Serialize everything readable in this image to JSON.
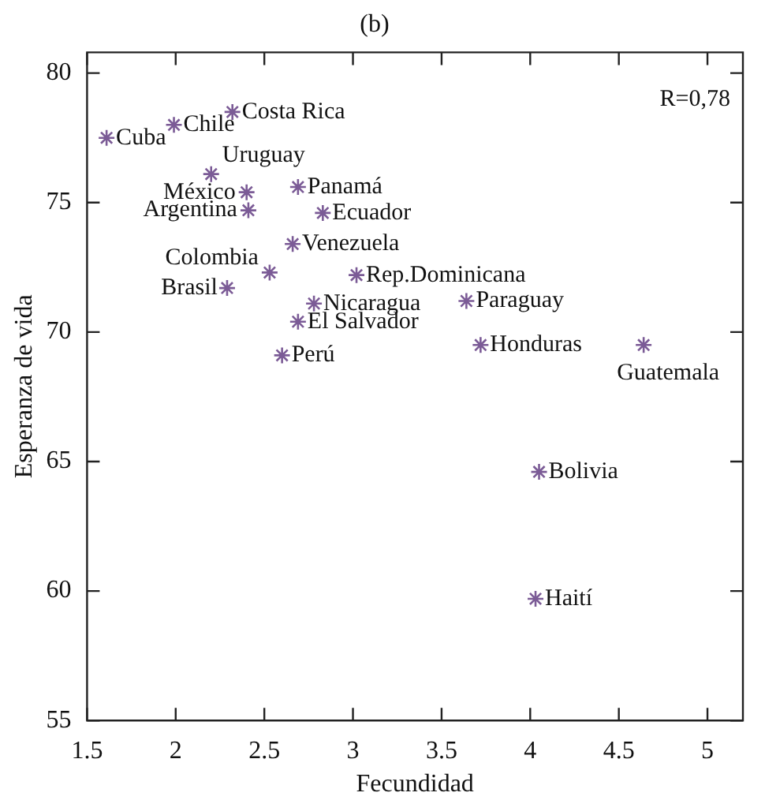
{
  "chart_data": {
    "type": "scatter",
    "title": "(b)",
    "xlabel": "Fecundidad",
    "ylabel": "Esperanza de vida",
    "x": [
      1.61,
      1.99,
      2.32,
      2.2,
      2.4,
      2.41,
      2.69,
      2.83,
      2.66,
      2.53,
      2.29,
      3.02,
      2.78,
      2.69,
      2.6,
      3.64,
      3.72,
      4.64,
      4.05,
      4.03
    ],
    "series": [
      {
        "color": "#7b5b96",
        "values": [
          77.5,
          78.0,
          78.5,
          76.1,
          75.4,
          74.7,
          75.6,
          74.6,
          73.4,
          72.3,
          71.7,
          72.2,
          71.1,
          70.4,
          69.1,
          71.2,
          69.5,
          69.5,
          64.6,
          59.7
        ]
      }
    ],
    "xlim": [
      1.5,
      5.2
    ],
    "xticks": [
      1.5,
      2,
      2.5,
      3,
      3.5,
      4,
      4.5,
      5
    ],
    "ylim": [
      55,
      80.8
    ],
    "yticks": [
      55,
      60,
      65,
      70,
      75,
      80
    ],
    "grid": false,
    "legend": false,
    "marker": "cross",
    "annotations": [
      {
        "text": "Cuba",
        "x": 1.61,
        "y": 77.5
      },
      {
        "text": "Chile",
        "x": 1.99,
        "y": 78.0
      },
      {
        "text": "Costa Rica",
        "x": 2.32,
        "y": 78.5
      },
      {
        "text": "Uruguay",
        "x": 2.2,
        "y": 76.1
      },
      {
        "text": "México",
        "x": 2.4,
        "y": 75.4
      },
      {
        "text": "Argentina",
        "x": 2.41,
        "y": 74.7
      },
      {
        "text": "Panamá",
        "x": 2.69,
        "y": 75.6
      },
      {
        "text": "Ecuador",
        "x": 2.83,
        "y": 74.6
      },
      {
        "text": "Venezuela",
        "x": 2.66,
        "y": 73.4
      },
      {
        "text": "Colombia",
        "x": 2.53,
        "y": 72.3
      },
      {
        "text": "Brasil",
        "x": 2.29,
        "y": 71.7
      },
      {
        "text": "Rep.Dominicana",
        "x": 3.02,
        "y": 72.2
      },
      {
        "text": "Nicaragua",
        "x": 2.78,
        "y": 71.1
      },
      {
        "text": "El Salvador",
        "x": 2.69,
        "y": 70.4
      },
      {
        "text": "Perú",
        "x": 2.6,
        "y": 69.1
      },
      {
        "text": "Paraguay",
        "x": 3.64,
        "y": 71.2
      },
      {
        "text": "Honduras",
        "x": 3.72,
        "y": 69.5
      },
      {
        "text": "Guatemala",
        "x": 4.64,
        "y": 69.5
      },
      {
        "text": "Bolivia",
        "x": 4.05,
        "y": 64.6
      },
      {
        "text": "Haití",
        "x": 4.03,
        "y": 59.7
      },
      "R=0,78"
    ]
  }
}
